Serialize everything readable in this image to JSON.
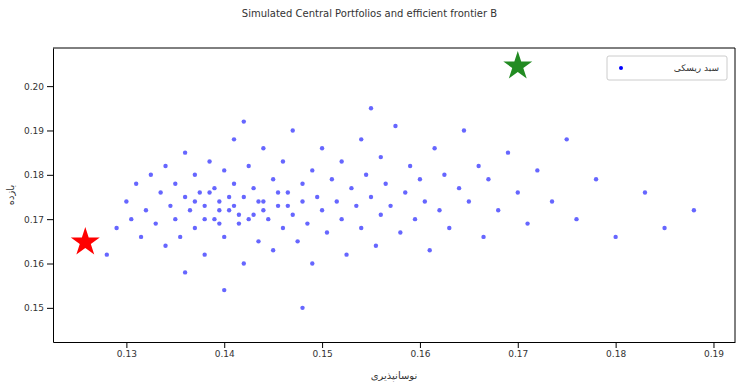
{
  "chart_data": {
    "type": "scatter",
    "title": "Simulated Central Portfolios and efficient frontier B",
    "x_label": "نوسانپذیری",
    "y_label": "بازده",
    "xlim": [
      0.1225,
      0.1922
    ],
    "ylim": [
      0.1423,
      0.2086
    ],
    "xticks": [
      0.13,
      0.14,
      0.15,
      0.16,
      0.17,
      0.18,
      0.19
    ],
    "yticks": [
      0.15,
      0.16,
      0.17,
      0.18,
      0.19,
      {
        "value": 0.2,
        "label": "0.20"
      }
    ],
    "grid": false,
    "legend": "upper right",
    "series": [
      {
        "name": "سبد ریسکی",
        "color": "#0000ff",
        "marker": "point",
        "x": [
          0.128,
          0.129,
          0.13,
          0.1305,
          0.131,
          0.1315,
          0.132,
          0.1325,
          0.133,
          0.1335,
          0.134,
          0.134,
          0.1345,
          0.135,
          0.135,
          0.1355,
          0.136,
          0.136,
          0.1365,
          0.137,
          0.137,
          0.1375,
          0.138,
          0.138,
          0.1385,
          0.139,
          0.139,
          0.1395,
          0.14,
          0.14,
          0.1405,
          0.141,
          0.141,
          0.1415,
          0.142,
          0.142,
          0.1425,
          0.143,
          0.143,
          0.1435,
          0.144,
          0.144,
          0.1445,
          0.145,
          0.145,
          0.1455,
          0.146,
          0.146,
          0.1465,
          0.147,
          0.147,
          0.1475,
          0.148,
          0.148,
          0.1485,
          0.149,
          0.149,
          0.1495,
          0.15,
          0.15,
          0.1505,
          0.151,
          0.1515,
          0.152,
          0.152,
          0.1525,
          0.153,
          0.1535,
          0.154,
          0.154,
          0.1545,
          0.155,
          0.1555,
          0.156,
          0.156,
          0.1565,
          0.157,
          0.1575,
          0.158,
          0.1585,
          0.159,
          0.1595,
          0.16,
          0.1605,
          0.161,
          0.1615,
          0.162,
          0.1625,
          0.163,
          0.164,
          0.1645,
          0.165,
          0.166,
          0.1665,
          0.167,
          0.168,
          0.169,
          0.17,
          0.171,
          0.172,
          0.1735,
          0.175,
          0.176,
          0.178,
          0.18,
          0.183,
          0.185,
          0.188,
          0.14,
          0.148,
          0.136,
          0.142,
          0.155,
          0.138,
          0.1395,
          0.141,
          0.1425,
          0.144,
          0.1455,
          0.137,
          0.1385,
          0.1405,
          0.1435,
          0.1465,
          0.1395,
          0.1415
        ],
        "values": [
          0.162,
          0.168,
          0.174,
          0.17,
          0.178,
          0.166,
          0.172,
          0.18,
          0.169,
          0.176,
          0.164,
          0.182,
          0.173,
          0.17,
          0.178,
          0.166,
          0.175,
          0.185,
          0.172,
          0.168,
          0.18,
          0.176,
          0.162,
          0.173,
          0.183,
          0.17,
          0.177,
          0.174,
          0.166,
          0.181,
          0.172,
          0.178,
          0.188,
          0.169,
          0.175,
          0.16,
          0.182,
          0.171,
          0.177,
          0.165,
          0.174,
          0.186,
          0.17,
          0.179,
          0.163,
          0.173,
          0.168,
          0.183,
          0.176,
          0.171,
          0.19,
          0.165,
          0.178,
          0.174,
          0.169,
          0.181,
          0.16,
          0.175,
          0.172,
          0.186,
          0.167,
          0.179,
          0.174,
          0.17,
          0.183,
          0.162,
          0.177,
          0.173,
          0.188,
          0.168,
          0.18,
          0.175,
          0.164,
          0.171,
          0.184,
          0.178,
          0.173,
          0.191,
          0.167,
          0.176,
          0.182,
          0.17,
          0.179,
          0.174,
          0.163,
          0.186,
          0.172,
          0.18,
          0.168,
          0.177,
          0.19,
          0.174,
          0.182,
          0.166,
          0.179,
          0.172,
          0.185,
          0.176,
          0.169,
          0.181,
          0.174,
          0.188,
          0.17,
          0.179,
          0.166,
          0.176,
          0.168,
          0.172,
          0.154,
          0.15,
          0.158,
          0.192,
          0.195,
          0.17,
          0.169,
          0.173,
          0.17,
          0.172,
          0.176,
          0.174,
          0.176,
          0.175,
          0.174,
          0.173,
          0.172,
          0.171
        ]
      },
      {
        "color": "#ff0000",
        "marker": "star",
        "x": [
          0.1258
        ],
        "values": [
          0.1648
        ]
      },
      {
        "color": "#228b22",
        "marker": "star",
        "x": [
          0.17
        ],
        "values": [
          0.2045
        ]
      }
    ]
  }
}
